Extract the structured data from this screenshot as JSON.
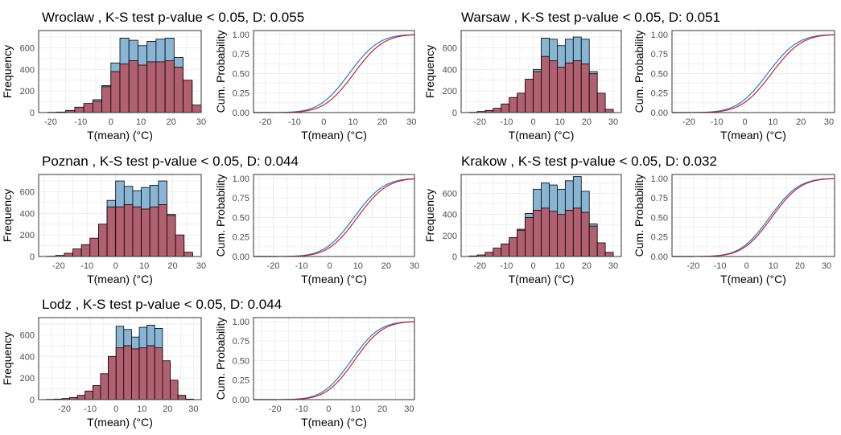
{
  "chart_data": [
    {
      "type": "histogram+ecdf",
      "title": "Wroclaw , K-S test p-value < 0.05, D: 0.055",
      "hist_xlabel": "T(mean) (°C)",
      "hist_ylabel": "Frequency",
      "ecdf_xlabel": "T(mean) (°C)",
      "ecdf_ylabel": "Cum. Probability",
      "bins_left": [
        -21,
        -18,
        -15,
        -12,
        -9,
        -6,
        -3,
        0,
        3,
        6,
        9,
        12,
        15,
        18,
        21,
        24,
        27
      ],
      "bin_width": 3,
      "series": [
        {
          "name": "",
          "color": "#8ab4d4",
          "values": [
            2,
            4,
            10,
            30,
            70,
            120,
            250,
            460,
            690,
            670,
            620,
            660,
            680,
            690,
            510,
            290,
            30
          ]
        },
        {
          "name": "",
          "color": "#b06070",
          "values": [
            2,
            5,
            20,
            50,
            85,
            105,
            240,
            380,
            450,
            480,
            440,
            470,
            470,
            480,
            420,
            300,
            70
          ]
        }
      ],
      "hist_xlim": [
        -24,
        30
      ],
      "hist_xticks": [
        -20,
        -10,
        0,
        10,
        20,
        30
      ],
      "hist_ylim": [
        0,
        760
      ],
      "hist_yticks": [
        0,
        200,
        400,
        600
      ],
      "ecdf_xlim": [
        -24,
        31
      ],
      "ecdf_xticks": [
        -20,
        -10,
        0,
        10,
        20,
        30
      ],
      "ecdf_ylim": [
        0,
        1.05
      ],
      "ecdf_yticks": [
        "0.00",
        "0.25",
        "0.50",
        "0.75",
        "1.00"
      ],
      "ecdf_series": [
        {
          "name": "",
          "color": "#2e7ab8",
          "shift": -0.8
        },
        {
          "name": "",
          "color": "#c0243a",
          "shift": 0.8
        }
      ],
      "ecdf_mean": 9.5,
      "ecdf_sd": 8.0
    },
    {
      "type": "histogram+ecdf",
      "title": "Warsaw , K-S test p-value < 0.05, D: 0.051",
      "hist_xlabel": "T(mean) (°C)",
      "hist_ylabel": "Frequency",
      "ecdf_xlabel": "T(mean) (°C)",
      "ecdf_ylabel": "Cum. Probability",
      "bins_left": [
        -24,
        -21,
        -18,
        -15,
        -12,
        -9,
        -6,
        -3,
        0,
        3,
        6,
        9,
        12,
        15,
        18,
        21,
        24,
        27
      ],
      "bin_width": 3,
      "series": [
        {
          "name": "",
          "color": "#8ab4d4",
          "values": [
            2,
            5,
            10,
            20,
            40,
            80,
            150,
            280,
            400,
            690,
            680,
            620,
            680,
            700,
            680,
            380,
            130,
            20
          ]
        },
        {
          "name": "",
          "color": "#b06070",
          "values": [
            2,
            10,
            20,
            40,
            80,
            140,
            180,
            310,
            380,
            520,
            480,
            420,
            460,
            480,
            450,
            360,
            180,
            30
          ]
        }
      ],
      "hist_xlim": [
        -27,
        33
      ],
      "hist_xticks": [
        -20,
        -10,
        0,
        10,
        20,
        30
      ],
      "hist_ylim": [
        0,
        760
      ],
      "hist_yticks": [
        0,
        200,
        400,
        600
      ],
      "ecdf_xlim": [
        -26,
        32
      ],
      "ecdf_xticks": [
        -20,
        -10,
        0,
        10,
        20,
        30
      ],
      "ecdf_ylim": [
        0,
        1.05
      ],
      "ecdf_yticks": [
        "0.00",
        "0.25",
        "0.50",
        "0.75",
        "1.00"
      ],
      "ecdf_series": [
        {
          "name": "",
          "color": "#2e7ab8",
          "shift": -0.7
        },
        {
          "name": "",
          "color": "#c0243a",
          "shift": 0.7
        }
      ],
      "ecdf_mean": 8.8,
      "ecdf_sd": 8.5
    },
    {
      "type": "histogram+ecdf",
      "title": "Poznan , K-S test p-value < 0.05, D: 0.044",
      "hist_xlabel": "T(mean) (°C)",
      "hist_ylabel": "Frequency",
      "ecdf_xlabel": "T(mean) (°C)",
      "ecdf_ylabel": "Cum. Probability",
      "bins_left": [
        -24,
        -21,
        -18,
        -15,
        -12,
        -9,
        -6,
        -3,
        0,
        3,
        6,
        9,
        12,
        15,
        18,
        21,
        24
      ],
      "bin_width": 3,
      "series": [
        {
          "name": "",
          "color": "#8ab4d4",
          "values": [
            2,
            5,
            10,
            30,
            60,
            130,
            280,
            520,
            700,
            650,
            610,
            640,
            660,
            700,
            390,
            140,
            20
          ]
        },
        {
          "name": "",
          "color": "#b06070",
          "values": [
            2,
            10,
            30,
            70,
            110,
            170,
            300,
            460,
            460,
            480,
            460,
            440,
            460,
            480,
            380,
            200,
            40
          ]
        }
      ],
      "hist_xlim": [
        -27,
        30
      ],
      "hist_xticks": [
        -20,
        -10,
        0,
        10,
        20,
        30
      ],
      "hist_ylim": [
        0,
        760
      ],
      "hist_yticks": [
        0,
        200,
        400,
        600
      ],
      "ecdf_xlim": [
        -27,
        30
      ],
      "ecdf_xticks": [
        -20,
        -10,
        0,
        10,
        20,
        30
      ],
      "ecdf_ylim": [
        0,
        1.05
      ],
      "ecdf_yticks": [
        "0.00",
        "0.25",
        "0.50",
        "0.75",
        "1.00"
      ],
      "ecdf_series": [
        {
          "name": "",
          "color": "#2e7ab8",
          "shift": -0.6
        },
        {
          "name": "",
          "color": "#c0243a",
          "shift": 0.6
        }
      ],
      "ecdf_mean": 9.2,
      "ecdf_sd": 8.2
    },
    {
      "type": "histogram+ecdf",
      "title": "Krakow , K-S test p-value < 0.05, D: 0.032",
      "hist_xlabel": "T(mean) (°C)",
      "hist_ylabel": "Frequency",
      "ecdf_xlabel": "T(mean) (°C)",
      "ecdf_ylabel": "Cum. Probability",
      "bins_left": [
        -24,
        -21,
        -18,
        -15,
        -12,
        -9,
        -6,
        -3,
        0,
        3,
        6,
        9,
        12,
        15,
        18,
        21,
        24,
        27
      ],
      "bin_width": 3,
      "series": [
        {
          "name": "",
          "color": "#8ab4d4",
          "values": [
            5,
            10,
            20,
            40,
            80,
            150,
            260,
            410,
            640,
            700,
            680,
            640,
            720,
            760,
            620,
            310,
            90,
            20
          ]
        },
        {
          "name": "",
          "color": "#b06070",
          "values": [
            5,
            15,
            40,
            80,
            120,
            180,
            250,
            370,
            440,
            460,
            430,
            400,
            440,
            460,
            420,
            290,
            130,
            40
          ]
        }
      ],
      "hist_xlim": [
        -27,
        33
      ],
      "hist_xticks": [
        -20,
        -10,
        0,
        10,
        20,
        30
      ],
      "hist_ylim": [
        0,
        780
      ],
      "hist_yticks": [
        0,
        200,
        400,
        600
      ],
      "ecdf_xlim": [
        -28,
        33
      ],
      "ecdf_xticks": [
        -20,
        -10,
        0,
        10,
        20,
        30
      ],
      "ecdf_ylim": [
        0,
        1.05
      ],
      "ecdf_yticks": [
        "0.00",
        "0.25",
        "0.50",
        "0.75",
        "1.00"
      ],
      "ecdf_series": [
        {
          "name": "",
          "color": "#2e7ab8",
          "shift": -0.4
        },
        {
          "name": "",
          "color": "#c0243a",
          "shift": 0.4
        }
      ],
      "ecdf_mean": 9.0,
      "ecdf_sd": 8.6
    },
    {
      "type": "histogram+ecdf",
      "title": "Lodz , K-S test p-value < 0.05, D: 0.044",
      "hist_xlabel": "T(mean) (°C)",
      "hist_ylabel": "Frequency",
      "ecdf_xlabel": "T(mean) (°C)",
      "ecdf_ylabel": "Cum. Probability",
      "bins_left": [
        -27,
        -24,
        -21,
        -18,
        -15,
        -12,
        -9,
        -6,
        -3,
        0,
        3,
        6,
        9,
        12,
        15,
        18,
        21,
        24,
        27
      ],
      "bin_width": 3,
      "series": [
        {
          "name": "",
          "color": "#8ab4d4",
          "values": [
            2,
            2,
            5,
            10,
            20,
            50,
            90,
            200,
            400,
            680,
            650,
            580,
            670,
            690,
            660,
            340,
            120,
            20,
            2
          ]
        },
        {
          "name": "",
          "color": "#b06070",
          "values": [
            2,
            5,
            10,
            20,
            40,
            80,
            130,
            240,
            400,
            480,
            500,
            470,
            480,
            500,
            480,
            360,
            180,
            40,
            5
          ]
        }
      ],
      "hist_xlim": [
        -30,
        33
      ],
      "hist_xticks": [
        -20,
        -10,
        0,
        10,
        20,
        30
      ],
      "hist_ylim": [
        0,
        760
      ],
      "hist_yticks": [
        0,
        200,
        400,
        600
      ],
      "ecdf_xlim": [
        -28,
        32
      ],
      "ecdf_xticks": [
        -20,
        -10,
        0,
        10,
        20,
        30
      ],
      "ecdf_ylim": [
        0,
        1.05
      ],
      "ecdf_yticks": [
        "0.00",
        "0.25",
        "0.50",
        "0.75",
        "1.00"
      ],
      "ecdf_series": [
        {
          "name": "",
          "color": "#2e7ab8",
          "shift": -0.6
        },
        {
          "name": "",
          "color": "#c0243a",
          "shift": 0.6
        }
      ],
      "ecdf_mean": 9.0,
      "ecdf_sd": 8.3
    }
  ]
}
